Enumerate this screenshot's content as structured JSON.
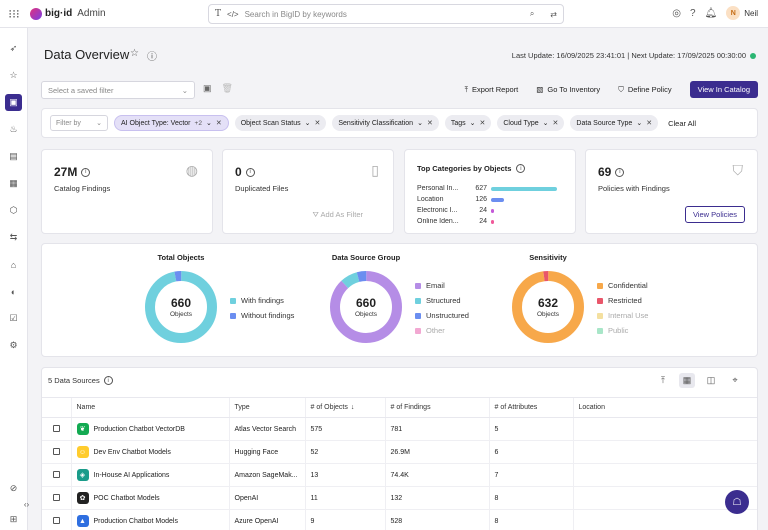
{
  "header": {
    "logo_text": "big·id",
    "app_name": "Admin",
    "search_placeholder": "Search in BigID by keywords",
    "user_initial": "N",
    "user_name": "Neil"
  },
  "page": {
    "title": "Data Overview",
    "last_update": "Last Update: 16/09/2025 23:41:01 | Next Update: 17/09/2025 00:30:00"
  },
  "toolbar": {
    "saved_filter_placeholder": "Select a saved filter",
    "export_report": "Export Report",
    "go_to_inventory": "Go To Inventory",
    "define_policy": "Define Policy",
    "view_in_catalog": "View In Catalog"
  },
  "filters": {
    "filter_by": "Filter by",
    "chips": [
      {
        "label": "AI Object Type: Vector",
        "extra": "+2"
      },
      {
        "label": "Object Scan Status"
      },
      {
        "label": "Sensitivity Classification"
      },
      {
        "label": "Tags"
      },
      {
        "label": "Cloud Type"
      },
      {
        "label": "Data Source Type"
      }
    ],
    "clear_all": "Clear All"
  },
  "cards": {
    "catalog": {
      "value": "27M",
      "label": "Catalog Findings"
    },
    "duplicated": {
      "value": "0",
      "label": "Duplicated Files",
      "action": "Add As Filter"
    },
    "top_categories": {
      "title": "Top Categories by Objects",
      "rows": [
        {
          "label": "Personal In...",
          "value": "627",
          "fraction": 1.0,
          "color": "#6fd0de"
        },
        {
          "label": "Location",
          "value": "126",
          "fraction": 0.2,
          "color": "#6b8ef0"
        },
        {
          "label": "Electronic I...",
          "value": "24",
          "fraction": 0.038,
          "color": "#c45ad8"
        },
        {
          "label": "Online Iden...",
          "value": "24",
          "fraction": 0.038,
          "color": "#f05a9a"
        }
      ]
    },
    "policies": {
      "value": "69",
      "label": "Policies with Findings",
      "button": "View Policies"
    }
  },
  "donuts": [
    {
      "title": "Total Objects",
      "total": "660",
      "unit": "Objects",
      "segments": [
        {
          "name": "With findings",
          "value": 640,
          "color": "#6fd0de"
        },
        {
          "name": "Without findings",
          "value": 20,
          "color": "#6b8ef0"
        }
      ]
    },
    {
      "title": "Data Source Group",
      "total": "660",
      "unit": "Objects",
      "segments": [
        {
          "name": "Email",
          "value": 580,
          "color": "#b58de6"
        },
        {
          "name": "Structured",
          "value": 52,
          "color": "#6fd0de"
        },
        {
          "name": "Unstructured",
          "value": 28,
          "color": "#6b8ef0"
        },
        {
          "name": "Other",
          "value": 0,
          "color": "#f2a8d2",
          "muted": true
        }
      ]
    },
    {
      "title": "Sensitivity",
      "total": "632",
      "unit": "Objects",
      "segments": [
        {
          "name": "Confidential",
          "value": 618,
          "color": "#f7a84a"
        },
        {
          "name": "Restricted",
          "value": 14,
          "color": "#e9566a"
        },
        {
          "name": "Internal Use",
          "value": 0,
          "color": "#f4e0a0",
          "muted": true
        },
        {
          "name": "Public",
          "value": 0,
          "color": "#a8e6c8",
          "muted": true
        }
      ]
    }
  ],
  "table": {
    "count_label": "5 Data Sources",
    "columns": [
      "Name",
      "Type",
      "# of Objects",
      "# of Findings",
      "# of Attributes",
      "Location"
    ],
    "rows": [
      {
        "name": "Production Chatbot VectorDB",
        "type": "Atlas Vector Search",
        "objects": "575",
        "findings": "781",
        "attributes": "5",
        "location": "",
        "icon": "leaf-icon",
        "icon_color": "#13aa52",
        "glyph": "❦"
      },
      {
        "name": "Dev Env Chatbot Models",
        "type": "Hugging Face",
        "objects": "52",
        "findings": "26.9M",
        "attributes": "6",
        "location": "",
        "icon": "hugging-face-icon",
        "icon_color": "#ffcc2e",
        "glyph": "☺"
      },
      {
        "name": "In-House AI Applications",
        "type": "Amazon SageMak...",
        "objects": "13",
        "findings": "74.4K",
        "attributes": "7",
        "location": "",
        "icon": "sagemaker-icon",
        "icon_color": "#1a9c8a",
        "glyph": "◈"
      },
      {
        "name": "POC Chatbot Models",
        "type": "OpenAI",
        "objects": "11",
        "findings": "132",
        "attributes": "8",
        "location": "",
        "icon": "openai-icon",
        "icon_color": "#222222",
        "glyph": "✿"
      },
      {
        "name": "Production Chatbot Models",
        "type": "Azure OpenAI",
        "objects": "9",
        "findings": "528",
        "attributes": "8",
        "location": "",
        "icon": "azure-icon",
        "icon_color": "#2f6fe0",
        "glyph": "▲"
      }
    ]
  }
}
